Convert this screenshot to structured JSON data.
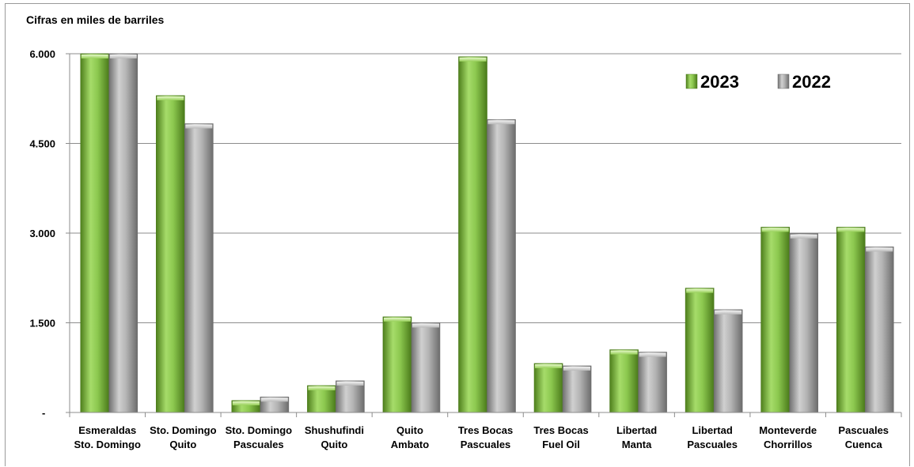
{
  "chart_data": {
    "type": "bar",
    "unit_label": "Cifras en miles de barriles",
    "categories": [
      [
        "Esmeraldas",
        "Sto. Domingo"
      ],
      [
        "Sto. Domingo",
        "Quito"
      ],
      [
        "Sto. Domingo",
        "Pascuales"
      ],
      [
        "Shushufindi",
        "Quito"
      ],
      [
        "Quito",
        "Ambato"
      ],
      [
        "Tres Bocas",
        "Pascuales"
      ],
      [
        "Tres Bocas",
        "Fuel Oil"
      ],
      [
        "Libertad",
        "Manta"
      ],
      [
        "Libertad",
        "Pascuales"
      ],
      [
        "Monteverde",
        "Chorrillos"
      ],
      [
        "Pascuales",
        "Cuenca"
      ]
    ],
    "series": [
      {
        "name": "2023",
        "values": [
          6000,
          5300,
          200,
          450,
          1600,
          5950,
          820,
          1050,
          2080,
          3100,
          3100
        ],
        "color": "#7db83a"
      },
      {
        "name": "2022",
        "values": [
          6000,
          4830,
          260,
          530,
          1500,
          4900,
          780,
          1010,
          1720,
          2990,
          2770
        ],
        "color": "#a6a6a6"
      }
    ],
    "ylim": [
      0,
      6000
    ],
    "yticks": [
      {
        "value": 0,
        "label": "-"
      },
      {
        "value": 1500,
        "label": "1.500"
      },
      {
        "value": 3000,
        "label": "3.000"
      },
      {
        "value": 4500,
        "label": "4.500"
      },
      {
        "value": 6000,
        "label": "6.000"
      }
    ],
    "grid": true,
    "legend_position": "top-right"
  }
}
